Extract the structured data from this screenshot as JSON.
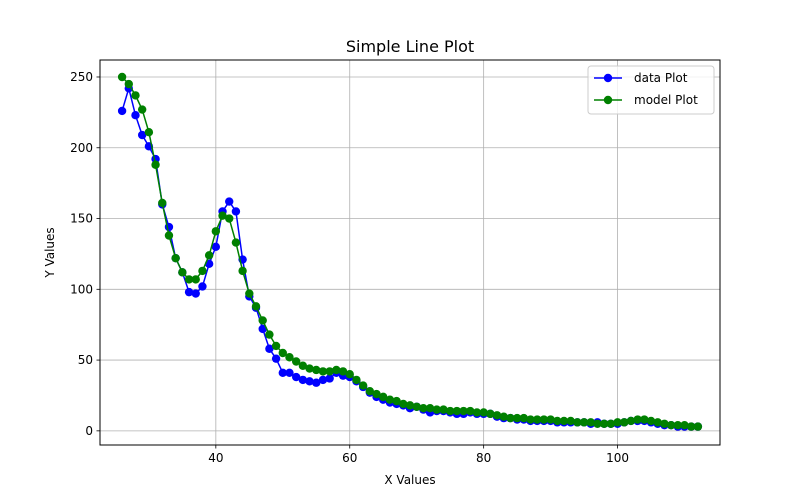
{
  "chart_data": {
    "type": "line",
    "title": "Simple Line Plot",
    "xlabel": "X Values",
    "ylabel": "Y Values",
    "xlim": [
      22.7,
      115.3
    ],
    "ylim": [
      -10,
      262
    ],
    "xticks": [
      40,
      60,
      80,
      100
    ],
    "yticks": [
      0,
      50,
      100,
      150,
      200,
      250
    ],
    "grid": true,
    "legend_position": "upper right",
    "x": [
      26,
      27,
      28,
      29,
      30,
      31,
      32,
      33,
      34,
      35,
      36,
      37,
      38,
      39,
      40,
      41,
      42,
      43,
      44,
      45,
      46,
      47,
      48,
      49,
      50,
      51,
      52,
      53,
      54,
      55,
      56,
      57,
      58,
      59,
      60,
      61,
      62,
      63,
      64,
      65,
      66,
      67,
      68,
      69,
      70,
      71,
      72,
      73,
      74,
      75,
      76,
      77,
      78,
      79,
      80,
      81,
      82,
      83,
      84,
      85,
      86,
      87,
      88,
      89,
      90,
      91,
      92,
      93,
      94,
      95,
      96,
      97,
      98,
      99,
      100,
      101,
      102,
      103,
      104,
      105,
      106,
      107,
      108,
      109,
      110,
      111,
      112
    ],
    "series": [
      {
        "name": "data Plot",
        "color": "#0000ff",
        "marker": "circle",
        "values": [
          226,
          242,
          223,
          209,
          201,
          192,
          160,
          144,
          122,
          112,
          98,
          97,
          102,
          118,
          130,
          155,
          162,
          155,
          121,
          95,
          87,
          72,
          58,
          51,
          41,
          41,
          38,
          36,
          35,
          34,
          36,
          37,
          41,
          39,
          38,
          35,
          31,
          27,
          24,
          22,
          20,
          19,
          18,
          16,
          17,
          15,
          13,
          14,
          14,
          13,
          12,
          12,
          13,
          12,
          12,
          12,
          10,
          9,
          9,
          8,
          8,
          7,
          7,
          7,
          7,
          6,
          6,
          6,
          6,
          6,
          5,
          6,
          5,
          5,
          5,
          6,
          7,
          7,
          7,
          6,
          5,
          4,
          4,
          3,
          3,
          3,
          3
        ]
      },
      {
        "name": "model Plot",
        "color": "#008000",
        "marker": "circle",
        "values": [
          250,
          245,
          237,
          227,
          211,
          188,
          161,
          138,
          122,
          112,
          107,
          107,
          113,
          124,
          141,
          152,
          150,
          133,
          113,
          97,
          88,
          78,
          68,
          60,
          55,
          52,
          49,
          46,
          44,
          43,
          42,
          42,
          43,
          42,
          40,
          36,
          32,
          28,
          26,
          24,
          22,
          21,
          19,
          18,
          17,
          16,
          16,
          15,
          15,
          14,
          14,
          14,
          14,
          13,
          13,
          12,
          11,
          10,
          9,
          9,
          9,
          8,
          8,
          8,
          8,
          7,
          7,
          7,
          6,
          6,
          6,
          5,
          5,
          5,
          6,
          6,
          7,
          8,
          8,
          7,
          6,
          5,
          4,
          4,
          4,
          3,
          3
        ]
      }
    ]
  }
}
